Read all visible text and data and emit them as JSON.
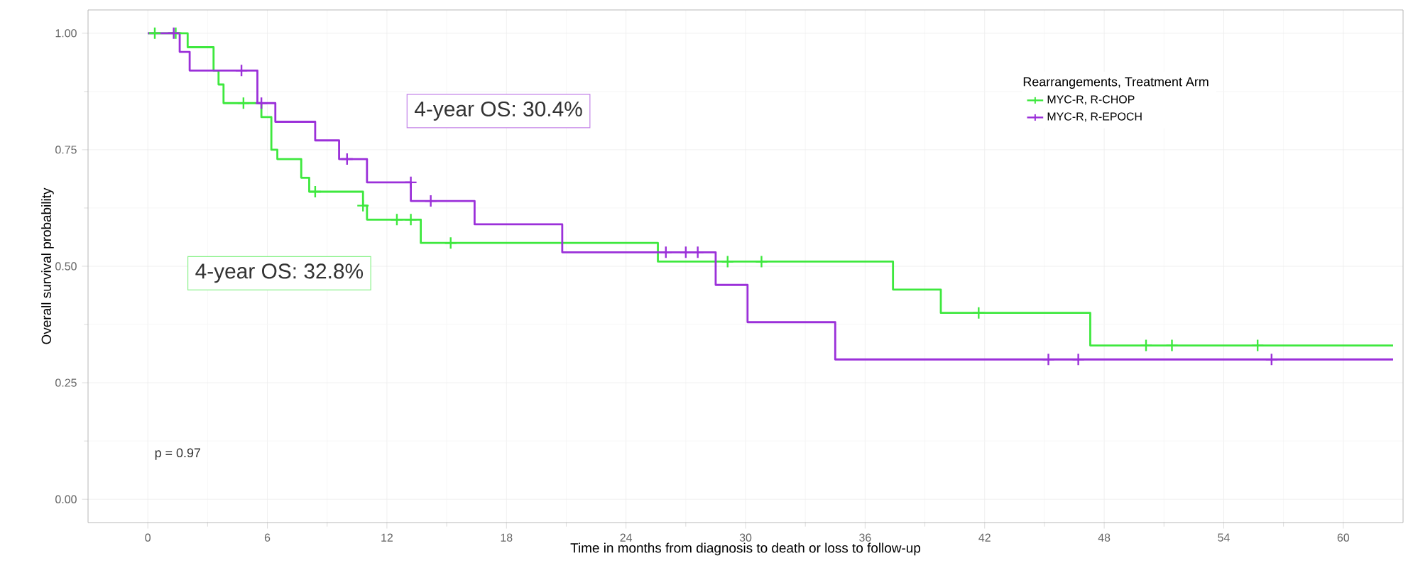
{
  "chart_data": {
    "type": "step",
    "xlabel": "Time in months from diagnosis to death or loss to follow-up",
    "ylabel": "Overall survival probability",
    "legend_title": "Rearrangements, Treatment Arm",
    "legend": "top right",
    "grid": true,
    "xlim": [
      -3,
      63
    ],
    "xticks": [
      0,
      6,
      12,
      18,
      24,
      30,
      36,
      42,
      48,
      54,
      60
    ],
    "ylim": [
      -0.05,
      1.05
    ],
    "yticks": [
      {
        "value": 0,
        "label": "0.00"
      },
      {
        "value": 0.25,
        "label": "0.25"
      },
      {
        "value": 0.5,
        "label": "0.50"
      },
      {
        "value": 0.75,
        "label": "0.75"
      },
      {
        "value": 1,
        "label": "1.00"
      }
    ],
    "annotations": [
      "4-year OS: 30.4%",
      "4-year OS: 32.8%",
      "p = 0.97"
    ],
    "series": [
      {
        "name": "MYC-R, R-CHOP",
        "color": "#3ee83e",
        "x": [
          0,
          2.0,
          3.3,
          3.55,
          3.8,
          5.7,
          6.2,
          6.5,
          7.7,
          8.1,
          10.8,
          11.0,
          13.7,
          25.6,
          37.4,
          39.8,
          47.3,
          62.5
        ],
        "values": [
          1,
          0.97,
          0.92,
          0.89,
          0.85,
          0.82,
          0.75,
          0.73,
          0.69,
          0.66,
          0.63,
          0.6,
          0.55,
          0.51,
          0.45,
          0.4,
          0.33,
          0.33
        ]
      },
      {
        "name": "MYC-R, R-EPOCH",
        "color": "#9b30d9",
        "x": [
          0,
          1.6,
          2.1,
          5.5,
          6.4,
          8.4,
          9.6,
          11.0,
          13.2,
          16.4,
          20.8,
          28.5,
          30.1,
          34.5,
          62.5
        ],
        "values": [
          1,
          0.96,
          0.92,
          0.85,
          0.81,
          0.77,
          0.73,
          0.68,
          0.64,
          0.59,
          0.53,
          0.46,
          0.38,
          0.3,
          0.3
        ]
      },
      {
        "type": "scatter",
        "marker": "cross",
        "color": "#3ee83e",
        "x": [
          0.35,
          1.4,
          4.8,
          8.4,
          10.8,
          12.5,
          13.2,
          15.2,
          29.1,
          30.8,
          41.7,
          50.1,
          51.4,
          55.7
        ],
        "values": [
          1,
          1,
          0.85,
          0.66,
          0.63,
          0.6,
          0.6,
          0.55,
          0.51,
          0.51,
          0.4,
          0.33,
          0.33,
          0.33
        ]
      },
      {
        "type": "scatter",
        "marker": "cross",
        "color": "#9b30d9",
        "x": [
          1.3,
          4.7,
          5.7,
          10.0,
          13.2,
          14.2,
          26.0,
          27.0,
          27.6,
          45.2,
          46.7,
          56.4
        ],
        "values": [
          1,
          0.92,
          0.85,
          0.73,
          0.68,
          0.64,
          0.53,
          0.53,
          0.53,
          0.3,
          0.3,
          0.3
        ]
      }
    ]
  }
}
